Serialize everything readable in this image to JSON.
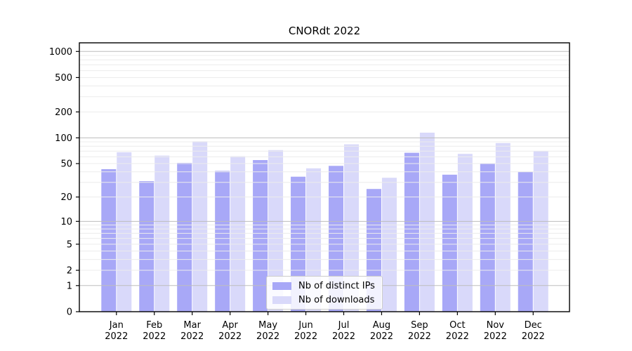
{
  "chart_data": {
    "type": "bar",
    "title": "CNORdt 2022",
    "categories": [
      "Jan 2022",
      "Feb 2022",
      "Mar 2022",
      "Apr 2022",
      "May 2022",
      "Jun 2022",
      "Jul 2022",
      "Aug 2022",
      "Sep 2022",
      "Oct 2022",
      "Nov 2022",
      "Dec 2022"
    ],
    "series": [
      {
        "name": "Nb of distinct IPs",
        "color": "#a8a8f7",
        "values": [
          43,
          31,
          51,
          41,
          55,
          35,
          47,
          25,
          67,
          37,
          50,
          40
        ]
      },
      {
        "name": "Nb of downloads",
        "color": "#d9d9fa",
        "values": [
          68,
          62,
          91,
          61,
          72,
          44,
          84,
          34,
          115,
          65,
          87,
          70
        ]
      }
    ],
    "y_ticks": [
      1000,
      500,
      200,
      100,
      50,
      20,
      10,
      5,
      2,
      1,
      0
    ],
    "y_scale": "log10(1+y)",
    "ylim": [
      0,
      1258
    ],
    "xlabel": "",
    "ylabel": "",
    "grid": "on",
    "legend_position": "lower center"
  }
}
